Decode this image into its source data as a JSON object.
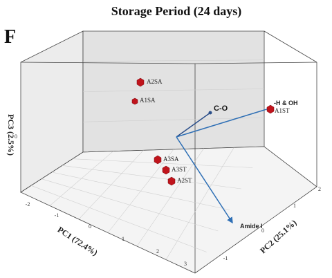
{
  "chart_data": {
    "type": "scatter",
    "title": "Storage Period (24 days)",
    "panel_label": "F",
    "xlabel": "PC1 (72.4%)",
    "ylabel": "PC2 (25.1%)",
    "zlabel": "PC3 (2.5%)",
    "x_ticks": [
      "-2",
      "-1",
      "0",
      "1",
      "2",
      "3"
    ],
    "y_ticks": [
      "-1",
      "0",
      "1",
      "2"
    ],
    "z_ticks": [
      "0"
    ],
    "grid": true,
    "colors": {
      "points": "#c0141c",
      "vectors": "#2e6fb5",
      "back_wall": "#e4e4e4",
      "floor": "#f3f3f3"
    },
    "points": [
      {
        "label": "A2SA"
      },
      {
        "label": "A1SA"
      },
      {
        "label": "A1ST"
      },
      {
        "label": "A3SA"
      },
      {
        "label": "A3ST"
      },
      {
        "label": "A2ST"
      }
    ],
    "vectors": [
      {
        "label": "C-O"
      },
      {
        "label": "-H & OH"
      },
      {
        "label": "Amide I"
      }
    ]
  }
}
